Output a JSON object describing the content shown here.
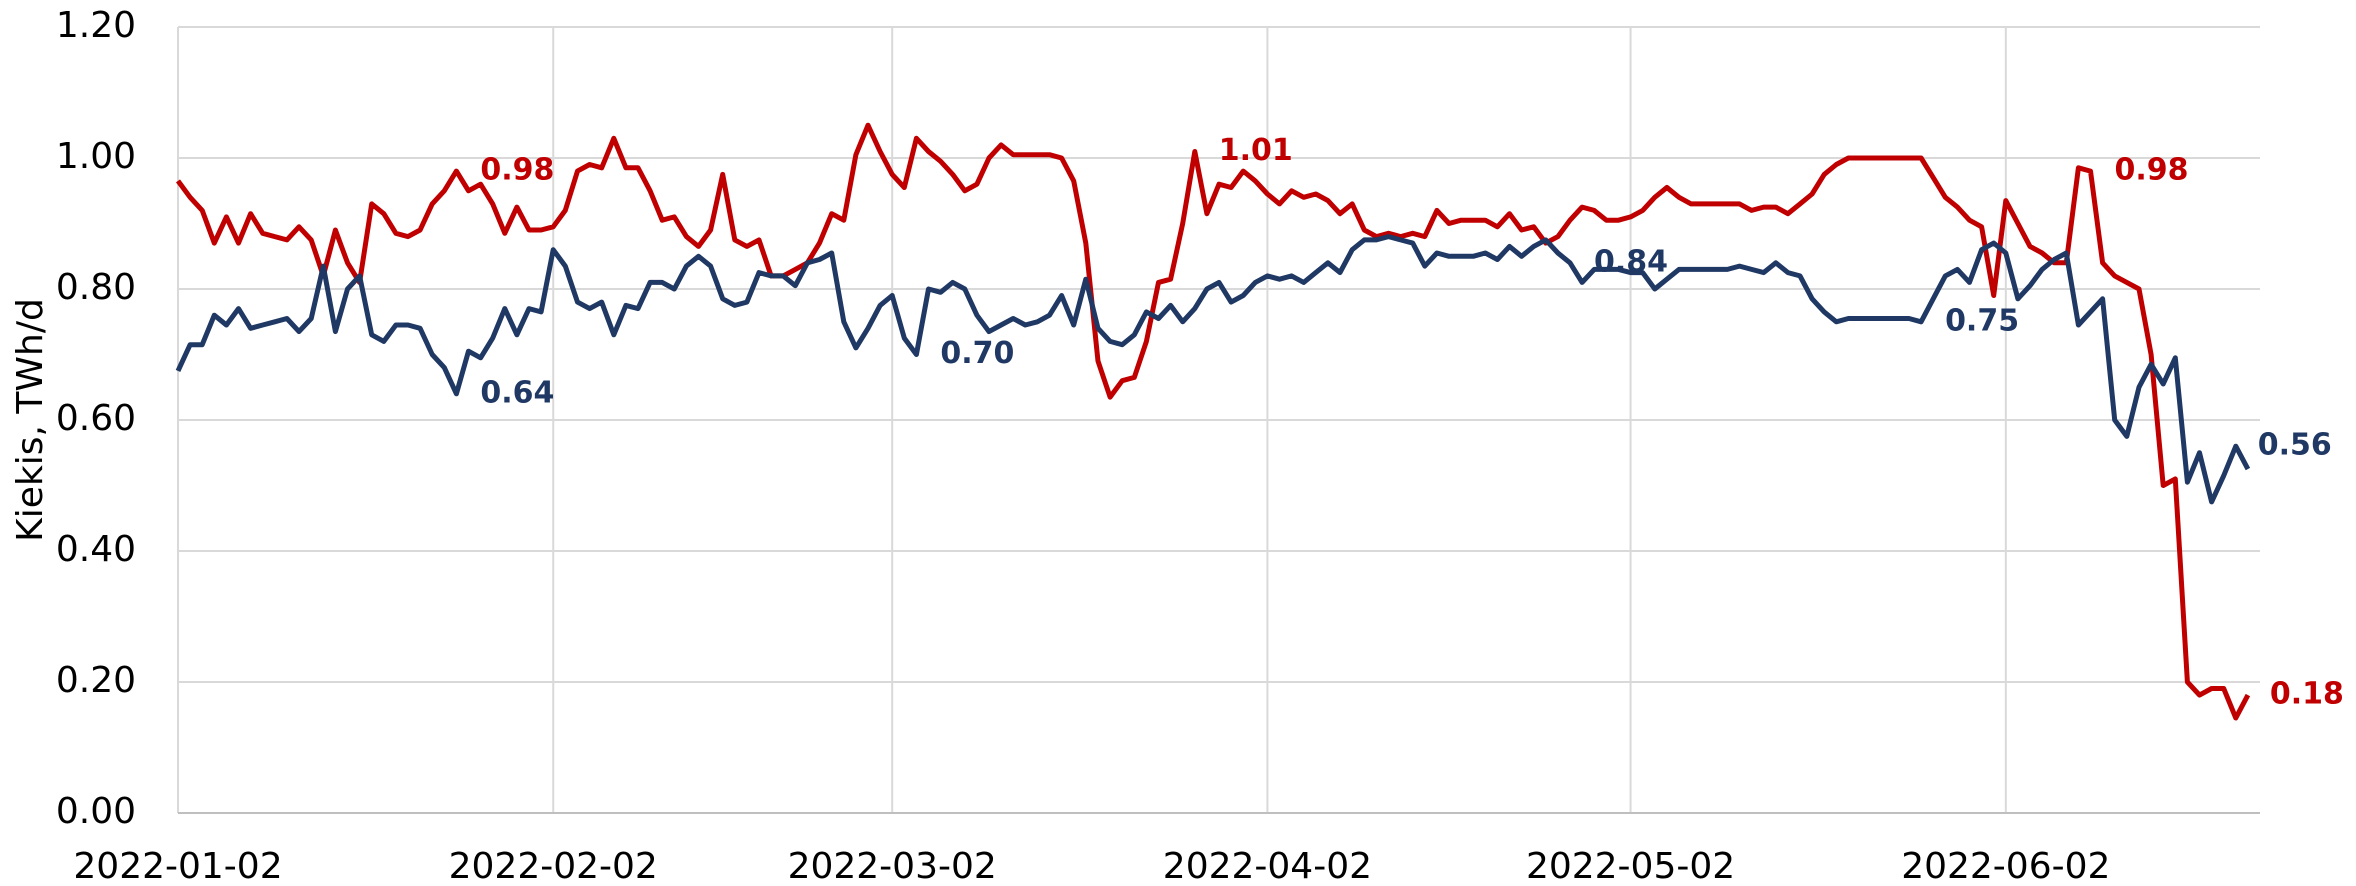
{
  "chart_data": {
    "type": "line",
    "ylabel": "Kiekis, TWh/d",
    "x": [
      "2022-01-02",
      "2022-01-03",
      "2022-01-04",
      "2022-01-05",
      "2022-01-06",
      "2022-01-07",
      "2022-01-08",
      "2022-01-09",
      "2022-01-10",
      "2022-01-11",
      "2022-01-12",
      "2022-01-13",
      "2022-01-14",
      "2022-01-15",
      "2022-01-16",
      "2022-01-17",
      "2022-01-18",
      "2022-01-19",
      "2022-01-20",
      "2022-01-21",
      "2022-01-22",
      "2022-01-23",
      "2022-01-24",
      "2022-01-25",
      "2022-01-26",
      "2022-01-27",
      "2022-01-28",
      "2022-01-29",
      "2022-01-30",
      "2022-01-31",
      "2022-02-01",
      "2022-02-02",
      "2022-02-03",
      "2022-02-04",
      "2022-02-05",
      "2022-02-06",
      "2022-02-07",
      "2022-02-08",
      "2022-02-09",
      "2022-02-10",
      "2022-02-11",
      "2022-02-12",
      "2022-02-13",
      "2022-02-14",
      "2022-02-15",
      "2022-02-16",
      "2022-02-17",
      "2022-02-18",
      "2022-02-19",
      "2022-02-20",
      "2022-02-21",
      "2022-02-22",
      "2022-02-23",
      "2022-02-24",
      "2022-02-25",
      "2022-02-26",
      "2022-02-27",
      "2022-02-28",
      "2022-03-01",
      "2022-03-02",
      "2022-03-03",
      "2022-03-04",
      "2022-03-05",
      "2022-03-06",
      "2022-03-07",
      "2022-03-08",
      "2022-03-09",
      "2022-03-10",
      "2022-03-11",
      "2022-03-12",
      "2022-03-13",
      "2022-03-14",
      "2022-03-15",
      "2022-03-16",
      "2022-03-17",
      "2022-03-18",
      "2022-03-19",
      "2022-03-20",
      "2022-03-21",
      "2022-03-22",
      "2022-03-23",
      "2022-03-24",
      "2022-03-25",
      "2022-03-26",
      "2022-03-27",
      "2022-03-28",
      "2022-03-29",
      "2022-03-30",
      "2022-03-31",
      "2022-04-01",
      "2022-04-02",
      "2022-04-03",
      "2022-04-04",
      "2022-04-05",
      "2022-04-06",
      "2022-04-07",
      "2022-04-08",
      "2022-04-09",
      "2022-04-10",
      "2022-04-11",
      "2022-04-12",
      "2022-04-13",
      "2022-04-14",
      "2022-04-15",
      "2022-04-16",
      "2022-04-17",
      "2022-04-18",
      "2022-04-19",
      "2022-04-20",
      "2022-04-21",
      "2022-04-22",
      "2022-04-23",
      "2022-04-24",
      "2022-04-25",
      "2022-04-26",
      "2022-04-27",
      "2022-04-28",
      "2022-04-29",
      "2022-04-30",
      "2022-05-01",
      "2022-05-02",
      "2022-05-03",
      "2022-05-04",
      "2022-05-05",
      "2022-05-06",
      "2022-05-07",
      "2022-05-08",
      "2022-05-09",
      "2022-05-10",
      "2022-05-11",
      "2022-05-12",
      "2022-05-13",
      "2022-05-14",
      "2022-05-15",
      "2022-05-16",
      "2022-05-17",
      "2022-05-18",
      "2022-05-19",
      "2022-05-20",
      "2022-05-21",
      "2022-05-22",
      "2022-05-23",
      "2022-05-24",
      "2022-05-25",
      "2022-05-26",
      "2022-05-27",
      "2022-05-28",
      "2022-05-29",
      "2022-05-30",
      "2022-05-31",
      "2022-06-01",
      "2022-06-02",
      "2022-06-03",
      "2022-06-04",
      "2022-06-05",
      "2022-06-06",
      "2022-06-07",
      "2022-06-08",
      "2022-06-09",
      "2022-06-10",
      "2022-06-11",
      "2022-06-12",
      "2022-06-13",
      "2022-06-14",
      "2022-06-15",
      "2022-06-16",
      "2022-06-17",
      "2022-06-18",
      "2022-06-19",
      "2022-06-20",
      "2022-06-21",
      "2022-06-22"
    ],
    "series": [
      {
        "color": "#c00000",
        "values": [
          0.965,
          0.94,
          0.92,
          0.87,
          0.91,
          0.87,
          0.915,
          0.885,
          0.88,
          0.875,
          0.895,
          0.875,
          0.82,
          0.89,
          0.84,
          0.81,
          0.93,
          0.915,
          0.885,
          0.88,
          0.89,
          0.93,
          0.95,
          0.98,
          0.95,
          0.96,
          0.93,
          0.885,
          0.925,
          0.89,
          0.89,
          0.895,
          0.92,
          0.98,
          0.99,
          0.985,
          1.03,
          0.985,
          0.985,
          0.95,
          0.905,
          0.91,
          0.88,
          0.865,
          0.89,
          0.975,
          0.875,
          0.865,
          0.875,
          0.82,
          0.82,
          0.83,
          0.84,
          0.87,
          0.915,
          0.905,
          1.005,
          1.05,
          1.01,
          0.975,
          0.955,
          1.03,
          1.01,
          0.995,
          0.975,
          0.95,
          0.96,
          1.0,
          1.02,
          1.005,
          1.005,
          1.005,
          1.005,
          1.0,
          0.965,
          0.87,
          0.69,
          0.635,
          0.66,
          0.665,
          0.72,
          0.81,
          0.815,
          0.9,
          1.01,
          0.915,
          0.96,
          0.955,
          0.98,
          0.965,
          0.945,
          0.93,
          0.95,
          0.94,
          0.945,
          0.935,
          0.915,
          0.93,
          0.89,
          0.88,
          0.885,
          0.88,
          0.885,
          0.88,
          0.92,
          0.9,
          0.905,
          0.905,
          0.905,
          0.895,
          0.915,
          0.89,
          0.895,
          0.87,
          0.88,
          0.905,
          0.925,
          0.92,
          0.905,
          0.905,
          0.91,
          0.92,
          0.94,
          0.955,
          0.94,
          0.93,
          0.93,
          0.93,
          0.93,
          0.93,
          0.92,
          0.925,
          0.925,
          0.915,
          0.93,
          0.945,
          0.975,
          0.99,
          1.0,
          1.0,
          1.0,
          1.0,
          1.0,
          1.0,
          1.0,
          0.97,
          0.94,
          0.925,
          0.905,
          0.895,
          0.79,
          0.935,
          0.9,
          0.865,
          0.855,
          0.84,
          0.84,
          0.985,
          0.98,
          0.84,
          0.82,
          0.81,
          0.8,
          0.7,
          0.5,
          0.51,
          0.2,
          0.18,
          0.19,
          0.19,
          0.145,
          0.18
        ],
        "value_labels": [
          null,
          null,
          null,
          null,
          null,
          null,
          null,
          null,
          null,
          null,
          null,
          null,
          null,
          null,
          null,
          null,
          null,
          null,
          null,
          null,
          null,
          null,
          null,
          "0.98",
          null,
          null,
          null,
          null,
          null,
          null,
          null,
          null,
          null,
          null,
          null,
          null,
          null,
          null,
          null,
          null,
          null,
          null,
          null,
          null,
          null,
          null,
          null,
          null,
          null,
          null,
          null,
          null,
          null,
          null,
          null,
          null,
          null,
          null,
          null,
          null,
          null,
          null,
          null,
          null,
          null,
          null,
          null,
          null,
          null,
          null,
          null,
          null,
          null,
          null,
          null,
          null,
          null,
          null,
          null,
          null,
          null,
          null,
          null,
          null,
          "1.01",
          null,
          null,
          null,
          null,
          null,
          null,
          null,
          null,
          null,
          null,
          null,
          null,
          null,
          null,
          null,
          null,
          null,
          null,
          null,
          null,
          null,
          null,
          null,
          null,
          null,
          null,
          null,
          null,
          null,
          null,
          null,
          null,
          null,
          null,
          null,
          null,
          null,
          null,
          null,
          null,
          null,
          null,
          null,
          null,
          null,
          null,
          null,
          null,
          null,
          null,
          null,
          null,
          null,
          null,
          null,
          null,
          null,
          null,
          null,
          null,
          null,
          null,
          null,
          null,
          null,
          null,
          null,
          null,
          null,
          null,
          null,
          null,
          null,
          "0.98",
          null,
          null,
          null,
          null,
          null,
          null,
          null,
          null,
          null,
          null,
          null,
          null,
          "0.18"
        ]
      },
      {
        "color": "#1f3864",
        "values": [
          0.675,
          0.715,
          0.715,
          0.76,
          0.745,
          0.77,
          0.74,
          0.745,
          0.75,
          0.755,
          0.735,
          0.755,
          0.835,
          0.735,
          0.8,
          0.82,
          0.73,
          0.72,
          0.745,
          0.745,
          0.74,
          0.7,
          0.68,
          0.64,
          0.705,
          0.695,
          0.725,
          0.77,
          0.73,
          0.77,
          0.765,
          0.86,
          0.835,
          0.78,
          0.77,
          0.78,
          0.73,
          0.775,
          0.77,
          0.81,
          0.81,
          0.8,
          0.835,
          0.85,
          0.835,
          0.785,
          0.775,
          0.78,
          0.825,
          0.82,
          0.82,
          0.805,
          0.84,
          0.845,
          0.855,
          0.75,
          0.71,
          0.74,
          0.775,
          0.79,
          0.725,
          0.7,
          0.8,
          0.795,
          0.81,
          0.8,
          0.76,
          0.735,
          0.745,
          0.755,
          0.745,
          0.75,
          0.76,
          0.79,
          0.745,
          0.815,
          0.74,
          0.72,
          0.715,
          0.73,
          0.765,
          0.755,
          0.775,
          0.75,
          0.77,
          0.8,
          0.81,
          0.78,
          0.79,
          0.81,
          0.82,
          0.815,
          0.82,
          0.81,
          0.825,
          0.84,
          0.825,
          0.86,
          0.875,
          0.875,
          0.88,
          0.875,
          0.87,
          0.835,
          0.855,
          0.85,
          0.85,
          0.85,
          0.855,
          0.845,
          0.865,
          0.85,
          0.865,
          0.875,
          0.855,
          0.84,
          0.81,
          0.83,
          0.83,
          0.83,
          0.825,
          0.825,
          0.8,
          0.815,
          0.83,
          0.83,
          0.83,
          0.83,
          0.83,
          0.835,
          0.83,
          0.825,
          0.84,
          0.825,
          0.82,
          0.785,
          0.765,
          0.75,
          0.755,
          0.755,
          0.755,
          0.755,
          0.755,
          0.755,
          0.75,
          0.785,
          0.82,
          0.83,
          0.81,
          0.86,
          0.87,
          0.855,
          0.785,
          0.805,
          0.83,
          0.845,
          0.855,
          0.745,
          0.765,
          0.785,
          0.6,
          0.575,
          0.65,
          0.685,
          0.655,
          0.695,
          0.505,
          0.55,
          0.475,
          0.515,
          0.56,
          0.525
        ],
        "value_labels": [
          null,
          null,
          null,
          null,
          null,
          null,
          null,
          null,
          null,
          null,
          null,
          null,
          null,
          null,
          null,
          null,
          null,
          null,
          null,
          null,
          null,
          null,
          null,
          "0.64",
          null,
          null,
          null,
          null,
          null,
          null,
          null,
          null,
          null,
          null,
          null,
          null,
          null,
          null,
          null,
          null,
          null,
          null,
          null,
          null,
          null,
          null,
          null,
          null,
          null,
          null,
          null,
          null,
          null,
          null,
          null,
          null,
          null,
          null,
          null,
          null,
          null,
          "0.70",
          null,
          null,
          null,
          null,
          null,
          null,
          null,
          null,
          null,
          null,
          null,
          null,
          null,
          null,
          null,
          null,
          null,
          null,
          null,
          null,
          null,
          null,
          null,
          null,
          null,
          null,
          null,
          null,
          null,
          null,
          null,
          null,
          null,
          null,
          null,
          null,
          null,
          null,
          null,
          null,
          null,
          null,
          null,
          null,
          null,
          null,
          null,
          null,
          null,
          null,
          null,
          null,
          null,
          "0.84",
          null,
          null,
          null,
          null,
          null,
          null,
          null,
          null,
          null,
          null,
          null,
          null,
          null,
          null,
          null,
          null,
          null,
          null,
          null,
          null,
          null,
          null,
          null,
          null,
          null,
          null,
          null,
          null,
          "0.75",
          null,
          null,
          null,
          null,
          null,
          null,
          null,
          null,
          null,
          null,
          null,
          null,
          null,
          null,
          null,
          null,
          null,
          null,
          null,
          null,
          null,
          null,
          null,
          null,
          null,
          "0.56",
          null
        ]
      }
    ],
    "xlim": [
      "2022-01-02",
      "2022-06-23"
    ],
    "xticks": [
      "2022-01-02",
      "2022-02-02",
      "2022-03-02",
      "2022-04-02",
      "2022-05-02",
      "2022-06-02"
    ],
    "ylim": [
      0,
      1.2
    ],
    "yticks": [
      {
        "value": 0,
        "label": "0.00"
      },
      {
        "value": 0.2,
        "label": "0.20"
      },
      {
        "value": 0.4,
        "label": "0.40"
      },
      {
        "value": 0.6,
        "label": "0.60"
      },
      {
        "value": 0.8,
        "label": "0.80"
      },
      {
        "value": 1,
        "label": "1.00"
      },
      {
        "value": 1.2,
        "label": "1.20"
      }
    ],
    "grid": true
  }
}
